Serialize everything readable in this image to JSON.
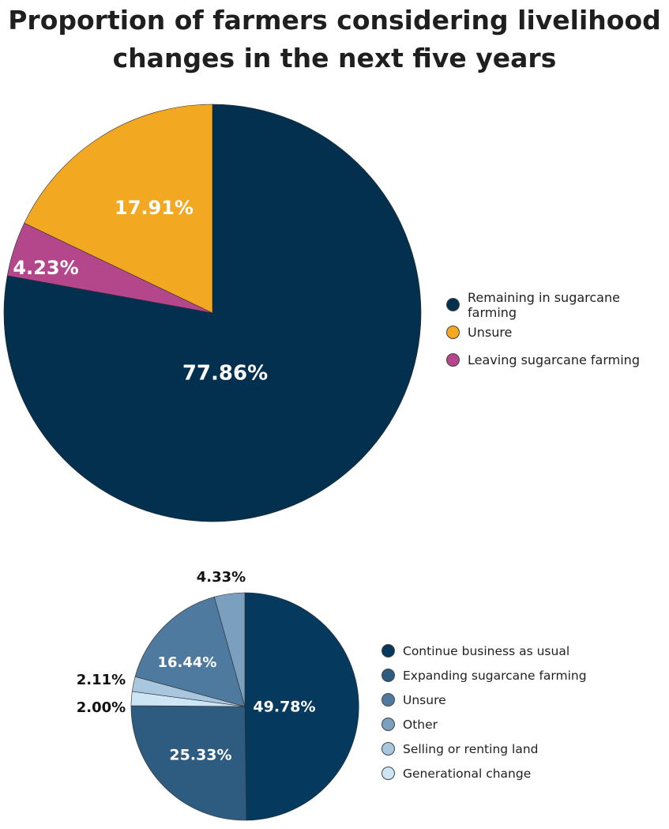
{
  "title_line1": "Proportion of farmers considering livelihood",
  "title_line2": "changes in the next five years",
  "chart_data": [
    {
      "type": "pie",
      "title": "Proportion of farmers considering livelihood changes in the next five years",
      "start": "12 o'clock, clockwise",
      "slices": [
        {
          "label": "Remaining in sugarcane farming",
          "value": 77.86,
          "display": "77.86%",
          "color": "#03304f",
          "label_color": "#ffffff"
        },
        {
          "label": "Leaving sugarcane farming",
          "value": 4.23,
          "display": "4.23%",
          "color": "#b4468c",
          "label_color": "#ffffff"
        },
        {
          "label": "Unsure",
          "value": 17.91,
          "display": "17.91%",
          "color": "#f3a822",
          "label_color": "#ffffff"
        }
      ],
      "legend_order": [
        "Remaining in sugarcane farming",
        "Unsure",
        "Leaving sugarcane farming"
      ],
      "legend_position": "right"
    },
    {
      "type": "pie",
      "start": "12 o'clock, clockwise",
      "slices": [
        {
          "label": "Continue business as usual",
          "value": 49.78,
          "display": "49.78%",
          "color": "#053a5e",
          "label_color": "#ffffff"
        },
        {
          "label": "Expanding sugarcane farming",
          "value": 25.33,
          "display": "25.33%",
          "color": "#2e5b80",
          "label_color": "#ffffff"
        },
        {
          "label": "Generational change",
          "value": 2.0,
          "display": "2.00%",
          "color": "#cde5f5",
          "label_color": "#111111"
        },
        {
          "label": "Selling or renting land",
          "value": 2.11,
          "display": "2.11%",
          "color": "#a8c7de",
          "label_color": "#111111"
        },
        {
          "label": "Unsure",
          "value": 16.44,
          "display": "16.44%",
          "color": "#4f7aa0",
          "label_color": "#ffffff"
        },
        {
          "label": "Other",
          "value": 4.33,
          "display": "4.33%",
          "color": "#7a9fbf",
          "label_color": "#111111"
        }
      ],
      "legend_order": [
        "Continue business as usual",
        "Expanding sugarcane farming",
        "Unsure",
        "Other",
        "Selling or renting land",
        "Generational change"
      ],
      "legend_position": "right"
    }
  ]
}
